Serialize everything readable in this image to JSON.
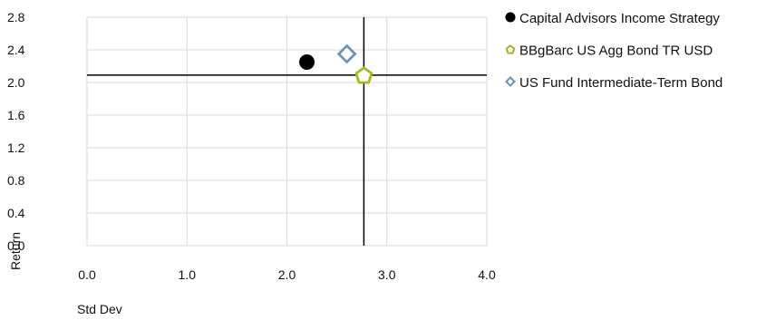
{
  "chart_data": {
    "type": "scatter",
    "xlabel": "Std Dev",
    "ylabel": "Return",
    "xlim": [
      0,
      4
    ],
    "ylim": [
      0,
      2.8
    ],
    "x_ticks": [
      "0.0",
      "1.0",
      "2.0",
      "3.0",
      "4.0"
    ],
    "y_ticks": [
      "0.0",
      "0.4",
      "0.8",
      "1.2",
      "1.6",
      "2.0",
      "2.4",
      "2.8"
    ],
    "grid": true,
    "legend_position": "right",
    "reference_lines": {
      "x": 2.77,
      "y": 2.09
    },
    "series": [
      {
        "name": "Capital Advisors Income Strategy",
        "x": 2.2,
        "y": 2.25,
        "marker": "circle",
        "color": "#000000"
      },
      {
        "name": "BBgBarc US Agg Bond TR USD",
        "x": 2.77,
        "y": 2.09,
        "marker": "pentagon",
        "color": "#9bbb1e"
      },
      {
        "name": "US Fund Intermediate-Term Bond",
        "x": 2.6,
        "y": 2.35,
        "marker": "diamond",
        "color": "#6b93b3"
      }
    ]
  }
}
